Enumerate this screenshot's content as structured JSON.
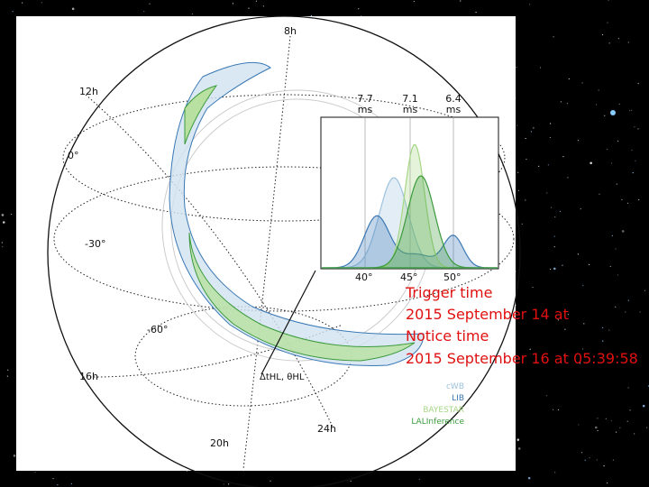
{
  "figure": {
    "hour_labels": [
      "8h",
      "12h",
      "16h",
      "20h",
      "24h"
    ],
    "dec_labels": [
      "0°",
      "-30°",
      "-60°"
    ],
    "delay_labels": [
      "7.7 ms",
      "7.1 ms",
      "6.4 ms"
    ],
    "angle_labels": [
      "40°",
      "45°",
      "50°"
    ],
    "annotation": "ΔtHL, θHL",
    "legend": [
      {
        "name": "cWB",
        "color": "#9ec3de"
      },
      {
        "name": "LIB",
        "color": "#3a78b5"
      },
      {
        "name": "BAYESTAR",
        "color": "#a6d785"
      },
      {
        "name": "LALInference",
        "color": "#3c9a3c"
      }
    ]
  },
  "overlay_text": [
    "Trigger time",
    "2015 September 14 at",
    "Notice time",
    "2015 September 16 at 05:39:58"
  ]
}
